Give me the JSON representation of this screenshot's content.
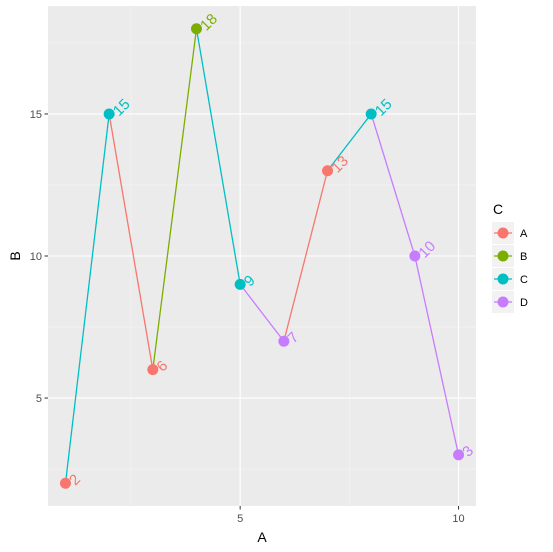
{
  "chart_data": {
    "type": "line",
    "title": "",
    "xlabel": "A",
    "ylabel": "B",
    "xlim": [
      0.6,
      10.4
    ],
    "ylim": [
      1.2,
      18.8
    ],
    "x_ticks": [
      5,
      10
    ],
    "y_ticks": [
      5,
      10,
      15
    ],
    "grid": true,
    "legend": {
      "title": "C",
      "placement": "right",
      "entries": [
        {
          "label": "A",
          "color": "#F8766D"
        },
        {
          "label": "B",
          "color": "#7CAE00"
        },
        {
          "label": "C",
          "color": "#00BFC4"
        },
        {
          "label": "D",
          "color": "#C77CFF"
        }
      ]
    },
    "points": [
      {
        "x": 1,
        "y": 2,
        "group": "A",
        "label": "2"
      },
      {
        "x": 2,
        "y": 15,
        "group": "C",
        "label": "15"
      },
      {
        "x": 3,
        "y": 6,
        "group": "A",
        "label": "6"
      },
      {
        "x": 4,
        "y": 18,
        "group": "B",
        "label": "18"
      },
      {
        "x": 5,
        "y": 9,
        "group": "C",
        "label": "9"
      },
      {
        "x": 6,
        "y": 7,
        "group": "D",
        "label": "7"
      },
      {
        "x": 7,
        "y": 13,
        "group": "A",
        "label": "13"
      },
      {
        "x": 8,
        "y": 15,
        "group": "C",
        "label": "15"
      },
      {
        "x": 9,
        "y": 10,
        "group": "D",
        "label": "10"
      },
      {
        "x": 10,
        "y": 3,
        "group": "D",
        "label": "3"
      }
    ]
  }
}
